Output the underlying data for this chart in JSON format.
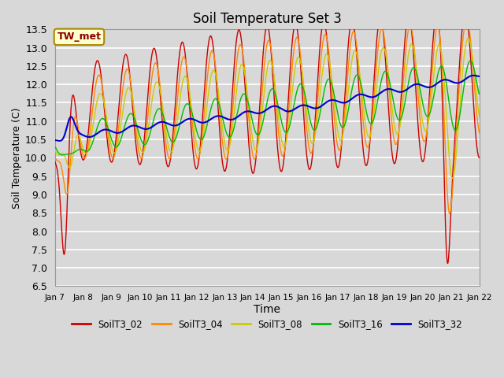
{
  "title": "Soil Temperature Set 3",
  "xlabel": "Time",
  "ylabel": "Soil Temperature (C)",
  "ylim": [
    6.5,
    13.5
  ],
  "background_color": "#d8d8d8",
  "plot_bg_color": "#d8d8d8",
  "grid_color": "white",
  "annotation": "TW_met",
  "annotation_color": "#8b0000",
  "annotation_bg": "#ffffcc",
  "series_colors": {
    "SoilT3_02": "#cc0000",
    "SoilT3_04": "#ff8800",
    "SoilT3_08": "#cccc00",
    "SoilT3_16": "#00bb00",
    "SoilT3_32": "#0000cc"
  },
  "x_tick_labels": [
    "Jan 7",
    "Jan 8",
    "Jan 9",
    "Jan 10",
    "Jan 11",
    "Jan 12",
    "Jan 13",
    "Jan 14",
    "Jan 15",
    "Jan 16",
    "Jan 17",
    "Jan 18",
    "Jan 19",
    "Jan 20",
    "Jan 21",
    "Jan 22"
  ],
  "legend_entries": [
    "SoilT3_02",
    "SoilT3_04",
    "SoilT3_08",
    "SoilT3_16",
    "SoilT3_32"
  ]
}
